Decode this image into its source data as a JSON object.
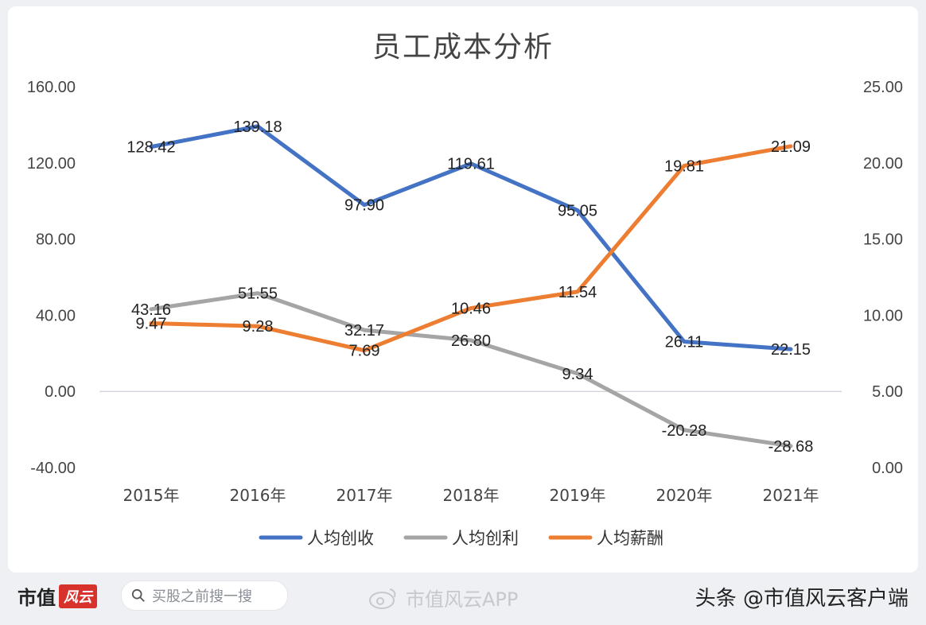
{
  "chart_data": {
    "type": "line",
    "title": "员工成本分析",
    "categories": [
      "2015年",
      "2016年",
      "2017年",
      "2018年",
      "2019年",
      "2020年",
      "2021年"
    ],
    "left_axis": {
      "ticks": [
        "160.00",
        "120.00",
        "80.00",
        "40.00",
        "0.00",
        "-40.00"
      ],
      "ylim": [
        -40,
        160
      ]
    },
    "right_axis": {
      "ticks": [
        "25.00",
        "20.00",
        "15.00",
        "10.00",
        "5.00",
        "0.00"
      ],
      "ylim": [
        0,
        25
      ]
    },
    "series": [
      {
        "name": "人均创收",
        "axis": "left",
        "color": "#4472c4",
        "values": [
          128.42,
          139.18,
          97.9,
          119.61,
          95.05,
          26.11,
          22.15
        ],
        "labels": [
          "128.42",
          "139.18",
          "97.90",
          "119.61",
          "95.05",
          "26.11",
          "22.15"
        ]
      },
      {
        "name": "人均创利",
        "axis": "left",
        "color": "#a5a5a5",
        "values": [
          43.16,
          51.55,
          32.17,
          26.8,
          9.34,
          -20.28,
          -28.68
        ],
        "labels": [
          "43.16",
          "51.55",
          "32.17",
          "26.80",
          "9.34",
          "-20.28",
          "-28.68"
        ]
      },
      {
        "name": "人均薪酬",
        "axis": "right",
        "color": "#ed7d31",
        "values": [
          9.47,
          9.28,
          7.69,
          10.46,
          11.54,
          19.81,
          21.09
        ],
        "labels": [
          "9.47",
          "9.28",
          "7.69",
          "10.46",
          "11.54",
          "19.81",
          "21.09"
        ]
      }
    ],
    "legend_position": "bottom",
    "grid": false
  },
  "footer": {
    "brand": "市值",
    "brand_logo": "风云",
    "search_placeholder": "买股之前搜一搜",
    "watermark_app": "市值风云APP",
    "source": "头条 @市值风云客户端",
    "icons": [
      "search-icon",
      "weibo-icon"
    ]
  }
}
